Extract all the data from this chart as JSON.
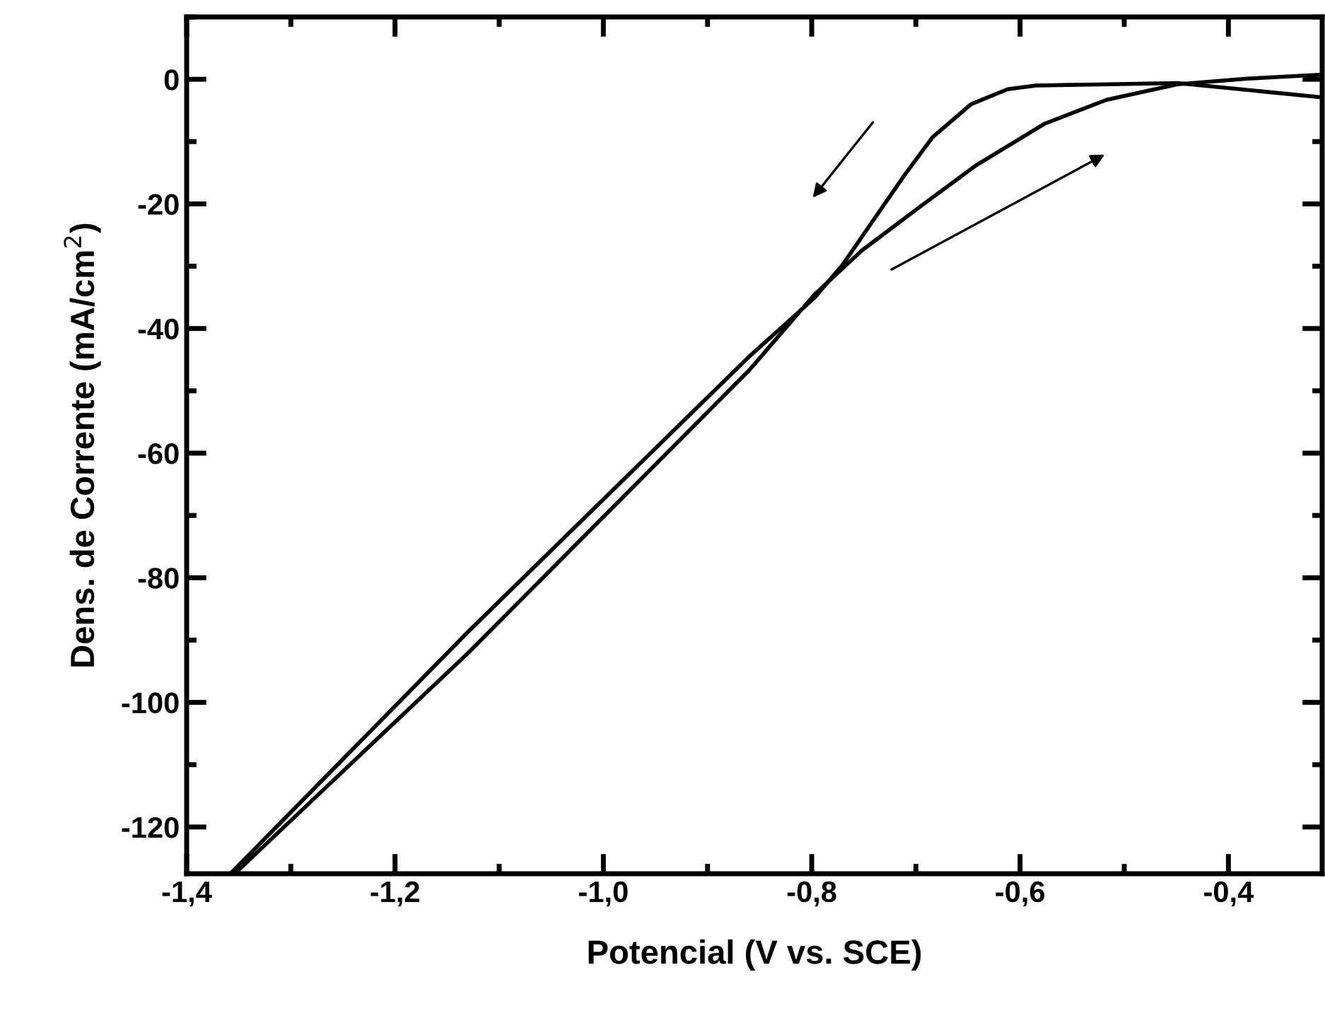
{
  "chart_data": {
    "type": "line",
    "xlabel": "Potencial (V vs. SCE)",
    "ylabel": "Dens. de Corrente (mA/cm$^{2}$)",
    "xlim": [
      -1.4,
      -0.31
    ],
    "ylim": [
      -127.5,
      10
    ],
    "xticks": [
      {
        "value": -1.4,
        "label": "-1,4"
      },
      {
        "value": -1.2,
        "label": "-1,2"
      },
      {
        "value": -1.0,
        "label": "-1,0"
      },
      {
        "value": -0.8,
        "label": "-0,8"
      },
      {
        "value": -0.6,
        "label": "-0,6"
      },
      {
        "value": -0.4,
        "label": "-0,4"
      }
    ],
    "yticks": [
      0,
      -20,
      -40,
      -60,
      -80,
      -100,
      -120
    ],
    "grid": false,
    "legend": false,
    "marker": "none",
    "line_style": "solid",
    "series": [
      {
        "color": "#000000",
        "x": [
          -1.358,
          -1.13,
          -0.86,
          -0.81,
          -0.797,
          -0.752,
          -0.698,
          -0.643,
          -0.576,
          -0.517,
          -0.449,
          -0.382,
          -0.314
        ],
        "values": [
          -127.5,
          -88.7,
          -44.5,
          -37,
          -34.5,
          -27.5,
          -20.7,
          -13.9,
          -7.1,
          -3.3,
          -0.8,
          0.1,
          0.7
        ]
      },
      {
        "color": "#000000",
        "x": [
          -0.31,
          -0.449,
          -0.585,
          -0.612,
          -0.647,
          -0.684,
          -0.711,
          -0.742,
          -0.77,
          -0.797,
          -0.81,
          -0.86,
          -1.13,
          -1.354
        ],
        "values": [
          -2.9,
          -0.6,
          -1.0,
          -1.6,
          -4.0,
          -9.3,
          -15.4,
          -22.9,
          -29.7,
          -35.0,
          -37,
          -46.7,
          -92.1,
          -127.5
        ]
      }
    ]
  }
}
